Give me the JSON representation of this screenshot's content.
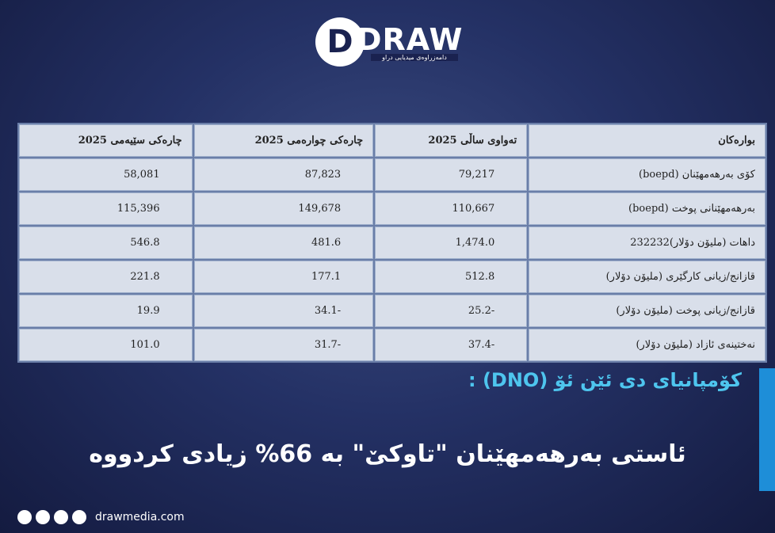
{
  "logo": {
    "name": "DRAW",
    "tagline": "دامەزراوەی میدیایی دراو"
  },
  "table": {
    "header": [
      "بوارەکان",
      "تەواوی ساڵی 2025",
      "چارەکی چوارەمی 2025",
      "چارەکی سێیەمی 2025"
    ],
    "rows": [
      [
        "کۆی بەرهەمهێنان (boepd)",
        "79,217",
        "87,823",
        "58,081"
      ],
      [
        "بەرهەمهێنانی پوخت (boepd)",
        "110,667",
        "149,678",
        "115,396"
      ],
      [
        "داهات (ملیۆن دۆلار)232232",
        "1,474.0",
        "481.6",
        "546.8"
      ],
      [
        "قازانج/زیانی کارگێری (ملیۆن دۆلار)",
        "512.8",
        "177.1",
        "221.8"
      ],
      [
        "قازانج/زیانی پوخت (ملیۆن دۆلار)",
        "25.2-",
        "34.1-",
        "19.9"
      ],
      [
        "نەختینەی ئازاد (ملیۆن دۆلار)",
        "37.4-",
        "31.7-",
        "101.0"
      ]
    ]
  },
  "headline": {
    "kicker": "کۆمپانیای دی ئێن ئۆ (DNO) :",
    "title": "ئاستی بەرهەمهێنان \"تاوکێ\" بە 66% زیادی کردووە"
  },
  "footer": {
    "website": "drawmedia.com"
  }
}
